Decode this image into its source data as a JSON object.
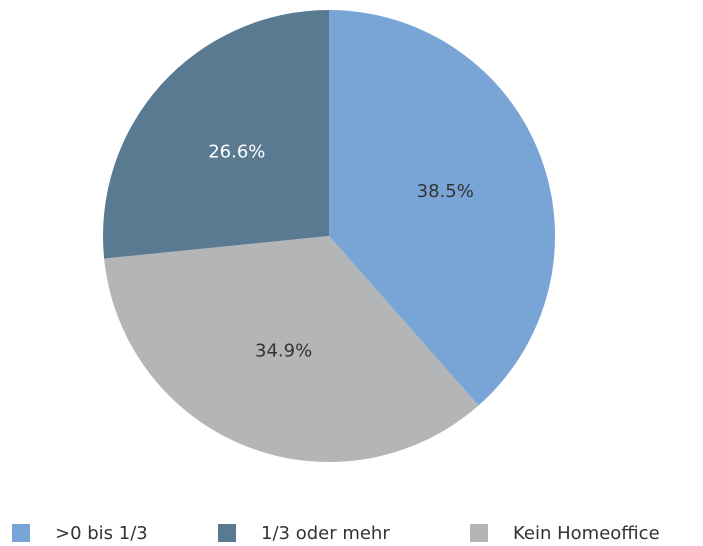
{
  "chart_data": {
    "type": "pie",
    "categories": [
      ">0 bis 1/3",
      "1/3 oder mehr",
      "Kein Homeoffice"
    ],
    "values": [
      38.5,
      26.6,
      34.9
    ],
    "value_labels": [
      "38.5%",
      "26.6%",
      "34.9%"
    ],
    "colors": [
      "#78a5d6",
      "#5a7a92",
      "#b4b5b7"
    ],
    "legend": "bottom"
  }
}
